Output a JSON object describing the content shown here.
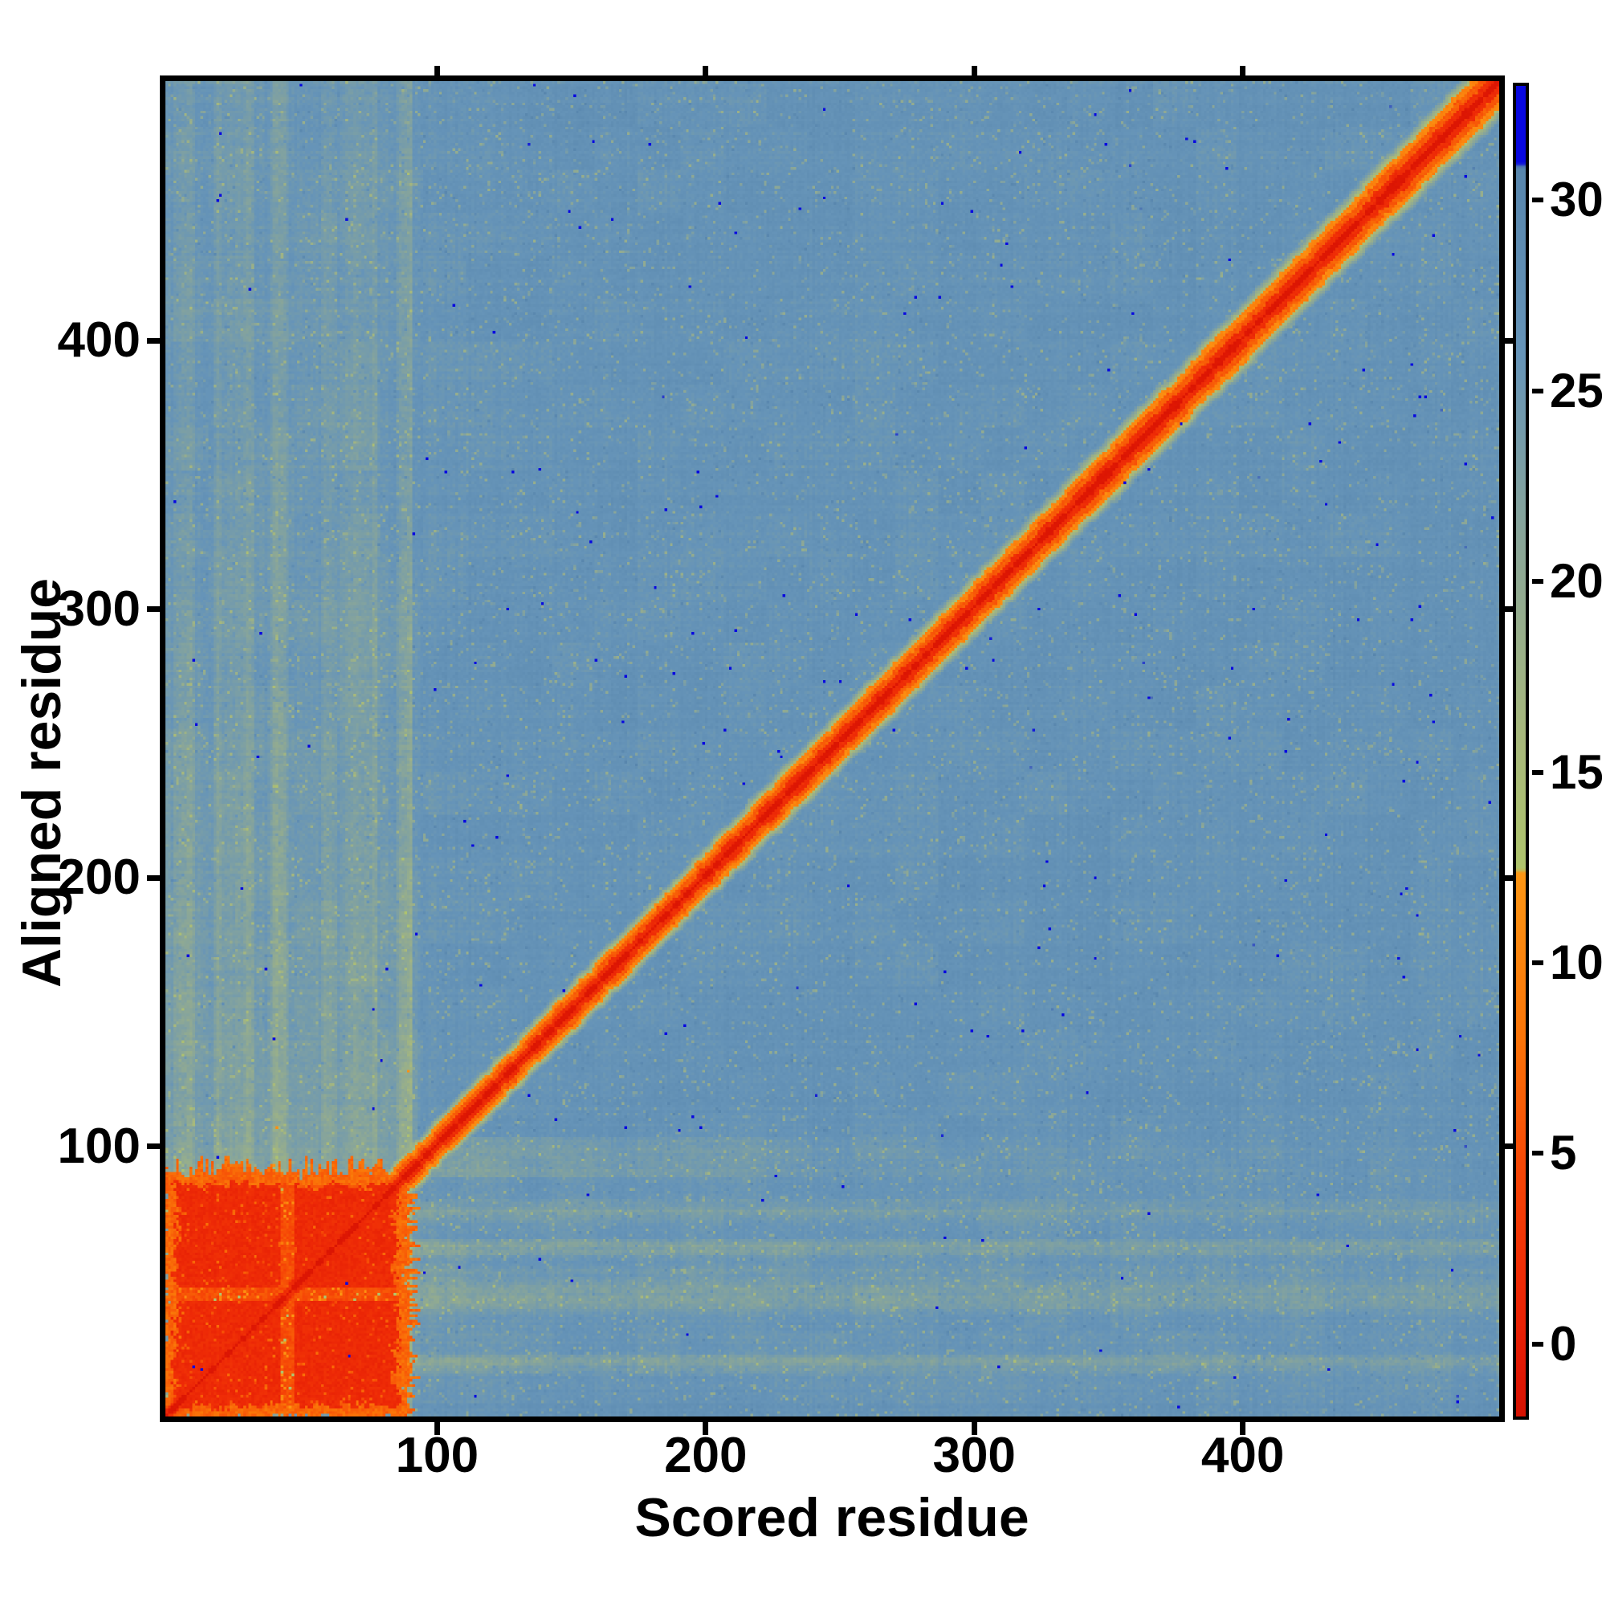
{
  "figure": {
    "background_color": "#ffffff",
    "frame_color": "#000000"
  },
  "chart_data": {
    "type": "heatmap",
    "title": "",
    "xlabel": "Scored residue",
    "ylabel": "Aligned residue",
    "x_ticks": [
      "100",
      "200",
      "300",
      "400"
    ],
    "x_tick_values": [
      100,
      200,
      300,
      400
    ],
    "y_ticks": [
      "100",
      "200",
      "300",
      "400"
    ],
    "y_tick_values": [
      100,
      200,
      300,
      400
    ],
    "x_range": [
      1,
      497
    ],
    "y_range": [
      1,
      497
    ],
    "n_residues": 497,
    "grid": "off",
    "colorbar": {
      "position": "right",
      "tick_labels": [
        "30",
        "25",
        "20",
        "15",
        "10",
        "5",
        "0"
      ],
      "tick_values": [
        30,
        25,
        20,
        15,
        10,
        5,
        0
      ],
      "vmin": -1.9,
      "vmax": 33.0,
      "overflow_blue_above": 31.0
    },
    "colormap_stops": [
      [
        33.0,
        "#0808e0"
      ],
      [
        31.0,
        "#0808e0"
      ],
      [
        30.9,
        "#5886ad"
      ],
      [
        26.0,
        "#6694b8"
      ],
      [
        21.0,
        "#8aa698"
      ],
      [
        16.0,
        "#a7b87c"
      ],
      [
        12.45,
        "#afc46c"
      ],
      [
        12.35,
        "#fc9614"
      ],
      [
        8.0,
        "#fa7408"
      ],
      [
        4.5,
        "#f64606"
      ],
      [
        1.5,
        "#ee2a06"
      ],
      [
        -0.5,
        "#e21a04"
      ],
      [
        -1.9,
        "#d61202"
      ]
    ],
    "features": {
      "background_score_range": [
        24,
        28
      ],
      "self_alignment_diagonal": {
        "from_residue": [
          1,
          1
        ],
        "to_residue": [
          497,
          497
        ],
        "core_value": -1.4,
        "core_halfwidth_res": 1.1,
        "band_halfwidth_res": 5.4,
        "band_value": 2.0,
        "halo_halfwidth_res": 11,
        "halo_value": 15
      },
      "n_terminal_low_score_block": {
        "residue_range": [
          2,
          88
        ],
        "core_value": 1.5,
        "rim_value": 7.0,
        "lighter_cross_at_residue": 45,
        "cross_value": 5.0
      },
      "n_terminal_column_stripes": {
        "residue_range": [
          2,
          92
        ],
        "score_range": [
          14,
          22
        ]
      },
      "n_terminal_row_stripes": {
        "residue_range": [
          2,
          92
        ],
        "score_range": [
          16,
          24
        ]
      },
      "isolated_max_score_dot_residue": [
        479,
        54
      ]
    },
    "render_seed": 77
  }
}
